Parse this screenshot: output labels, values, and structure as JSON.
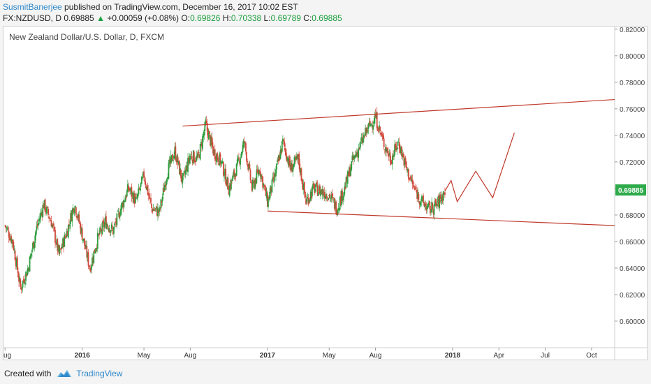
{
  "header": {
    "author": "SusmitBanerjee",
    "published_text": " published on TradingView.com, December 16, 2017 10:02 EST",
    "symbol": "FX:NZDUSD, D",
    "last": "0.69885",
    "change_arrow": "▲",
    "change": "+0.00059 (+0.08%)",
    "o_label": "O:",
    "o_value": "0.69826",
    "h_label": "H:",
    "h_value": "0.70338",
    "l_label": "L:",
    "l_value": "0.69789",
    "c_label": "C:",
    "c_value": "0.69885"
  },
  "footer": {
    "created_with": "Created with",
    "brand": "TradingView"
  },
  "colors": {
    "up": "#2e9e3e",
    "down": "#d04a3c",
    "trendline": "#c0392b",
    "price_badge": "#2eaa4a"
  },
  "chart_data": {
    "type": "candlestick",
    "title": "New Zealand Dollar/U.S. Dollar, D, FXCM",
    "ylim": [
      0.58,
      0.822
    ],
    "y_ticks": [
      "0.82000",
      "0.80000",
      "0.78000",
      "0.76000",
      "0.74000",
      "0.72000",
      "0.70000",
      "0.68000",
      "0.66000",
      "0.64000",
      "0.62000",
      "0.60000"
    ],
    "x_ticks": [
      {
        "label": "Aug",
        "t": 0
      },
      {
        "label": "2016",
        "t": 5
      },
      {
        "label": "May",
        "t": 9
      },
      {
        "label": "Aug",
        "t": 12
      },
      {
        "label": "2017",
        "t": 17
      },
      {
        "label": "May",
        "t": 21
      },
      {
        "label": "Aug",
        "t": 24
      },
      {
        "label": "2018",
        "t": 29
      },
      {
        "label": "Apr",
        "t": 32
      },
      {
        "label": "Jul",
        "t": 35
      },
      {
        "label": "Oct",
        "t": 38
      }
    ],
    "x_range": [
      -0.1,
      39.5
    ],
    "last_price": "0.69885",
    "last_value": 0.69885,
    "closes": [
      [
        0.0,
        0.672
      ],
      [
        0.5,
        0.66
      ],
      [
        1.0,
        0.625
      ],
      [
        1.5,
        0.64
      ],
      [
        2.0,
        0.668
      ],
      [
        2.5,
        0.688
      ],
      [
        3.0,
        0.675
      ],
      [
        3.5,
        0.65
      ],
      [
        4.0,
        0.667
      ],
      [
        4.5,
        0.689
      ],
      [
        5.0,
        0.665
      ],
      [
        5.5,
        0.64
      ],
      [
        6.0,
        0.662
      ],
      [
        6.5,
        0.675
      ],
      [
        7.0,
        0.668
      ],
      [
        7.5,
        0.685
      ],
      [
        8.0,
        0.7
      ],
      [
        8.5,
        0.69
      ],
      [
        9.0,
        0.71
      ],
      [
        9.5,
        0.685
      ],
      [
        10.0,
        0.682
      ],
      [
        10.5,
        0.712
      ],
      [
        11.0,
        0.728
      ],
      [
        11.5,
        0.705
      ],
      [
        12.0,
        0.725
      ],
      [
        12.5,
        0.722
      ],
      [
        13.0,
        0.748
      ],
      [
        13.5,
        0.728
      ],
      [
        14.0,
        0.72
      ],
      [
        14.5,
        0.7
      ],
      [
        15.0,
        0.715
      ],
      [
        15.5,
        0.735
      ],
      [
        16.0,
        0.7
      ],
      [
        16.5,
        0.715
      ],
      [
        17.0,
        0.69
      ],
      [
        17.5,
        0.71
      ],
      [
        18.0,
        0.735
      ],
      [
        18.5,
        0.715
      ],
      [
        19.0,
        0.722
      ],
      [
        19.5,
        0.69
      ],
      [
        20.0,
        0.7
      ],
      [
        20.5,
        0.698
      ],
      [
        21.0,
        0.695
      ],
      [
        21.5,
        0.685
      ],
      [
        22.0,
        0.7
      ],
      [
        22.5,
        0.72
      ],
      [
        23.0,
        0.732
      ],
      [
        23.5,
        0.745
      ],
      [
        24.0,
        0.754
      ],
      [
        24.5,
        0.735
      ],
      [
        25.0,
        0.722
      ],
      [
        25.5,
        0.735
      ],
      [
        26.0,
        0.715
      ],
      [
        26.5,
        0.7
      ],
      [
        27.0,
        0.69
      ],
      [
        27.5,
        0.684
      ],
      [
        28.0,
        0.688
      ],
      [
        28.5,
        0.698
      ]
    ],
    "forecast_path": [
      [
        28.5,
        0.698
      ],
      [
        28.9,
        0.706
      ],
      [
        29.3,
        0.69
      ],
      [
        30.5,
        0.713
      ],
      [
        31.6,
        0.693
      ],
      [
        33.0,
        0.742
      ]
    ],
    "trendlines": [
      {
        "from": [
          11.5,
          0.747
        ],
        "to": [
          39.5,
          0.767
        ]
      },
      {
        "from": [
          17.0,
          0.683
        ],
        "to": [
          39.5,
          0.672
        ]
      }
    ]
  }
}
